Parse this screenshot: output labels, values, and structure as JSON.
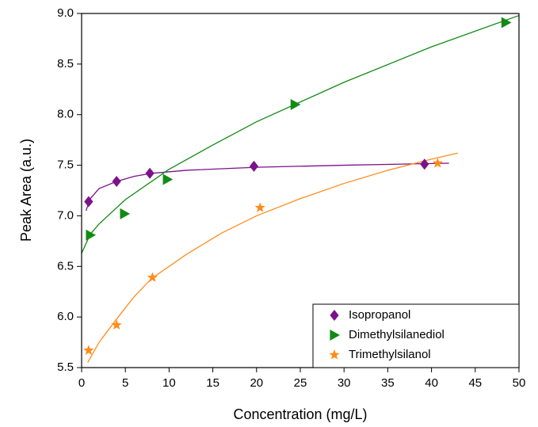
{
  "chart_data": {
    "type": "scatter",
    "xlabel": "Concentration (mg/L)",
    "ylabel": "Peak Area (a.u.)",
    "xlim": [
      0,
      50
    ],
    "ylim": [
      5.5,
      9.0
    ],
    "xticks": [
      0,
      5,
      10,
      15,
      20,
      25,
      30,
      35,
      40,
      45,
      50
    ],
    "yticks": [
      5.5,
      {
        "value": 6.0,
        "label": "6.0"
      },
      6.5,
      {
        "value": 7.0,
        "label": "7.0"
      },
      7.5,
      {
        "value": 8.0,
        "label": "8.0"
      },
      8.5,
      {
        "value": 9.0,
        "label": "9.0"
      }
    ],
    "legend": "lower right",
    "series": [
      {
        "name": "Isopropanol",
        "color": "#7b128a",
        "marker": "diamond",
        "x": [
          0.8,
          4,
          7.8,
          19.7,
          39.2
        ],
        "values": [
          7.14,
          7.34,
          7.42,
          7.49,
          7.51
        ],
        "fit": {
          "x": [
            0.5,
            1,
            2,
            4,
            6,
            8,
            12,
            20,
            30,
            42
          ],
          "y": [
            7.05,
            7.17,
            7.27,
            7.34,
            7.39,
            7.42,
            7.45,
            7.48,
            7.5,
            7.52
          ]
        }
      },
      {
        "name": "Dimethylsilanediol",
        "color": "#138a13",
        "marker": "triangle-right",
        "x": [
          1,
          4.9,
          9.8,
          24.4,
          48.5
        ],
        "values": [
          6.81,
          7.02,
          7.36,
          8.1,
          8.91
        ],
        "fit": {
          "x": [
            0,
            1,
            2,
            5,
            10,
            15,
            20,
            30,
            40,
            50
          ],
          "y": [
            6.63,
            6.82,
            6.92,
            7.16,
            7.46,
            7.7,
            7.93,
            8.32,
            8.67,
            8.98
          ]
        }
      },
      {
        "name": "Trimethylsilanol",
        "color": "#ff8c1a",
        "marker": "star",
        "x": [
          0.8,
          4,
          8.1,
          20.4,
          40.7
        ],
        "values": [
          5.67,
          5.92,
          6.39,
          7.08,
          7.52
        ],
        "fit": {
          "x": [
            0.7,
            2,
            4,
            6,
            8,
            12,
            16,
            20,
            25,
            30,
            35,
            40,
            43
          ],
          "y": [
            5.55,
            5.75,
            5.98,
            6.2,
            6.38,
            6.62,
            6.83,
            7.0,
            7.17,
            7.32,
            7.45,
            7.56,
            7.62
          ]
        }
      }
    ]
  }
}
